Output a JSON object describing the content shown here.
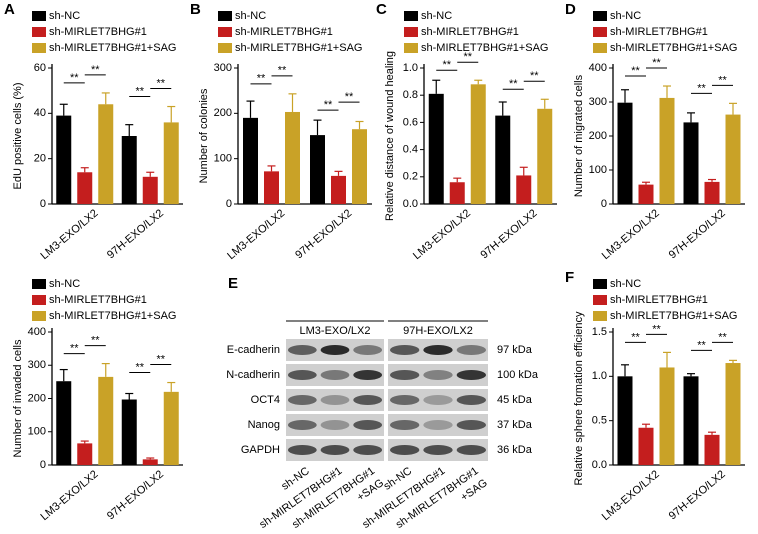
{
  "chart_data": [
    {
      "type": "bar",
      "panel": "A",
      "y_label": "EdU positive cells (%)",
      "categories": [
        "LM3-EXO/LX2",
        "97H-EXO/LX2"
      ],
      "series": [
        {
          "name": "sh-NC",
          "color": "#000000",
          "values": [
            39,
            30
          ],
          "errors": [
            5,
            5
          ]
        },
        {
          "name": "sh-MIRLET7BHG#1",
          "color": "#c41e1e",
          "values": [
            14,
            12
          ],
          "errors": [
            2,
            2
          ]
        },
        {
          "name": "sh-MIRLET7BHG#1+SAG",
          "color": "#c9a227",
          "values": [
            44,
            36
          ],
          "errors": [
            5,
            7
          ]
        }
      ],
      "annotations": [
        "**",
        "**",
        "**",
        "**"
      ],
      "ylim": [
        0,
        60
      ],
      "yticks": [
        0,
        20,
        40,
        60
      ]
    },
    {
      "type": "bar",
      "panel": "B",
      "y_label": "Number of colonies",
      "categories": [
        "LM3-EXO/LX2",
        "97H-EXO/LX2"
      ],
      "series": [
        {
          "name": "sh-NC",
          "color": "#000000",
          "values": [
            190,
            152
          ],
          "errors": [
            37,
            33
          ]
        },
        {
          "name": "sh-MIRLET7BHG#1",
          "color": "#c41e1e",
          "values": [
            72,
            62
          ],
          "errors": [
            12,
            10
          ]
        },
        {
          "name": "sh-MIRLET7BHG#1+SAG",
          "color": "#c9a227",
          "values": [
            203,
            165
          ],
          "errors": [
            40,
            17
          ]
        }
      ],
      "annotations": [
        "**",
        "**",
        "**",
        "**"
      ],
      "ylim": [
        0,
        300
      ],
      "yticks": [
        0,
        100,
        200,
        300
      ]
    },
    {
      "type": "bar",
      "panel": "C",
      "y_label": "Relative distance of wound healing",
      "categories": [
        "LM3-EXO/LX2",
        "97H-EXO/LX2"
      ],
      "series": [
        {
          "name": "sh-NC",
          "color": "#000000",
          "values": [
            0.81,
            0.65
          ],
          "errors": [
            0.1,
            0.1
          ]
        },
        {
          "name": "sh-MIRLET7BHG#1",
          "color": "#c41e1e",
          "values": [
            0.16,
            0.21
          ],
          "errors": [
            0.03,
            0.06
          ]
        },
        {
          "name": "sh-MIRLET7BHG#1+SAG",
          "color": "#c9a227",
          "values": [
            0.88,
            0.7
          ],
          "errors": [
            0.03,
            0.07
          ]
        }
      ],
      "annotations": [
        "**",
        "**",
        "**",
        "**"
      ],
      "ylim": [
        0,
        1
      ],
      "yticks": [
        {
          "value": 0,
          "label": "0.0"
        },
        0.2,
        0.4,
        0.6,
        0.8,
        {
          "value": 1,
          "label": "1.0"
        }
      ]
    },
    {
      "type": "bar",
      "panel": "D",
      "y_label": "Number of migrated cells",
      "categories": [
        "LM3-EXO/LX2",
        "97H-EXO/LX2"
      ],
      "series": [
        {
          "name": "sh-NC",
          "color": "#000000",
          "values": [
            298,
            240
          ],
          "errors": [
            38,
            28
          ]
        },
        {
          "name": "sh-MIRLET7BHG#1",
          "color": "#c41e1e",
          "values": [
            57,
            65
          ],
          "errors": [
            7,
            7
          ]
        },
        {
          "name": "sh-MIRLET7BHG#1+SAG",
          "color": "#c9a227",
          "values": [
            312,
            263
          ],
          "errors": [
            35,
            33
          ]
        }
      ],
      "annotations": [
        "**",
        "**",
        "**",
        "**"
      ],
      "ylim": [
        0,
        400
      ],
      "yticks": [
        0,
        100,
        200,
        300,
        400
      ]
    },
    {
      "type": "bar",
      "y_label": "Number of invaded cells",
      "categories": [
        "LM3-EXO/LX2",
        "97H-EXO/LX2"
      ],
      "series": [
        {
          "name": "sh-NC",
          "color": "#000000",
          "values": [
            252,
            197
          ],
          "errors": [
            35,
            18
          ]
        },
        {
          "name": "sh-MIRLET7BHG#1",
          "color": "#c41e1e",
          "values": [
            65,
            17
          ],
          "errors": [
            7,
            4
          ]
        },
        {
          "name": "sh-MIRLET7BHG#1+SAG",
          "color": "#c9a227",
          "values": [
            265,
            220
          ],
          "errors": [
            40,
            28
          ]
        }
      ],
      "annotations": [
        "**",
        "**",
        "**",
        "**"
      ],
      "ylim": [
        0,
        400
      ],
      "yticks": [
        0,
        100,
        200,
        300,
        400
      ]
    },
    {
      "type": "bar",
      "panel": "F",
      "y_label": "Relative sphere formation efficiency",
      "categories": [
        "LM3-EXO/LX2",
        "97H-EXO/LX2"
      ],
      "series": [
        {
          "name": "sh-NC",
          "color": "#000000",
          "values": [
            1.0,
            1.0
          ],
          "errors": [
            0.13,
            0.03
          ]
        },
        {
          "name": "sh-MIRLET7BHG#1",
          "color": "#c41e1e",
          "values": [
            0.42,
            0.34
          ],
          "errors": [
            0.04,
            0.03
          ]
        },
        {
          "name": "sh-MIRLET7BHG#1+SAG",
          "color": "#c9a227",
          "values": [
            1.1,
            1.15
          ],
          "errors": [
            0.17,
            0.03
          ]
        }
      ],
      "annotations": [
        "**",
        "**",
        "**",
        "**"
      ],
      "ylim": [
        0,
        1.5
      ],
      "yticks": [
        {
          "value": 0,
          "label": "0.0"
        },
        {
          "value": 0.5,
          "label": "0.5"
        },
        {
          "value": 1,
          "label": "1.0"
        },
        {
          "value": 1.5,
          "label": "1.5"
        }
      ]
    }
  ],
  "blot": {
    "panel": "E",
    "groups": [
      "LM3-EXO/LX2",
      "97H-EXO/LX2"
    ],
    "rows": [
      {
        "protein": "E-cadherin",
        "size": "97 kDa"
      },
      {
        "protein": "N-cadherin",
        "size": "100 kDa"
      },
      {
        "protein": "OCT4",
        "size": "45 kDa"
      },
      {
        "protein": "Nanog",
        "size": "37 kDa"
      },
      {
        "protein": "GAPDH",
        "size": "36 kDa"
      }
    ],
    "lanes": [
      [
        "sh-NC"
      ],
      [
        "sh-MIRLET7BHG#1"
      ],
      [
        "sh-MIRLET7BHG#1",
        "+SAG"
      ]
    ]
  }
}
